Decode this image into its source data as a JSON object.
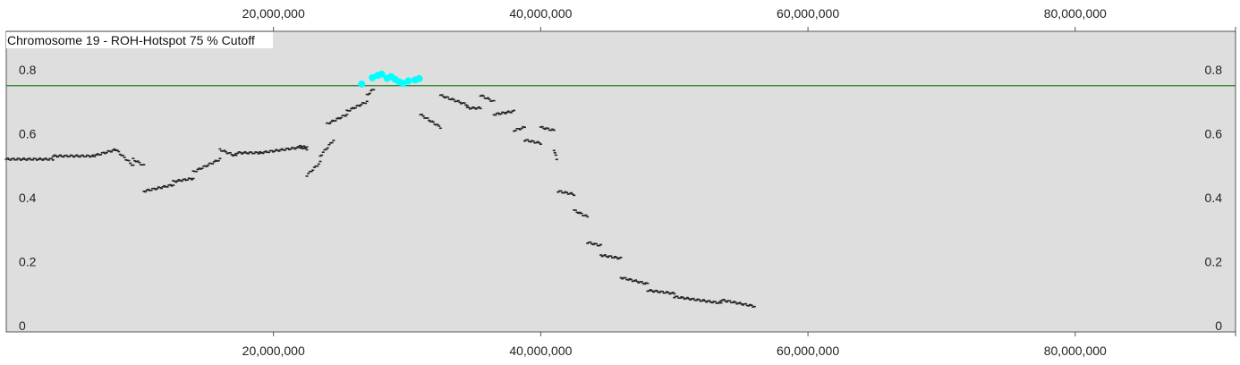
{
  "chart_data": {
    "type": "scatter",
    "title": "Chromosome 19 - ROH-Hotspot 75 % Cutoff",
    "xlim": [
      1,
      92000000
    ],
    "ylim": [
      -0.02,
      0.92
    ],
    "x_ticks": [
      20000000,
      40000000,
      60000000,
      80000000
    ],
    "x_tick_labels": [
      "20,000,000",
      "40,000,000",
      "60,000,000",
      "80,000,000"
    ],
    "y_ticks": [
      0,
      0.2,
      0.4,
      0.6,
      0.8
    ],
    "y_tick_labels": [
      "0",
      "0.2",
      "0.4",
      "0.6",
      "0.8"
    ],
    "cutoff": 0.75,
    "colors": {
      "panel": "#dedede",
      "points": "#222222",
      "hotspot": "#00ffff",
      "cutoff_line": "#1f7a1f"
    },
    "segments": [
      [
        0.0,
        3.5,
        0.52,
        0.52
      ],
      [
        3.5,
        6.5,
        0.53,
        0.53
      ],
      [
        6.5,
        8.2,
        0.53,
        0.55
      ],
      [
        8.2,
        9.5,
        0.55,
        0.5
      ],
      [
        9.5,
        10.3,
        0.52,
        0.5
      ],
      [
        10.3,
        12.5,
        0.42,
        0.44
      ],
      [
        12.5,
        14.0,
        0.45,
        0.46
      ],
      [
        14.0,
        16.0,
        0.48,
        0.52
      ],
      [
        16.0,
        17.2,
        0.55,
        0.53
      ],
      [
        17.2,
        19.0,
        0.54,
        0.54
      ],
      [
        19.0,
        22.5,
        0.54,
        0.56
      ],
      [
        22.0,
        22.5,
        0.56,
        0.55
      ],
      [
        22.5,
        23.5,
        0.47,
        0.51
      ],
      [
        23.5,
        24.5,
        0.53,
        0.58
      ],
      [
        24.0,
        25.5,
        0.63,
        0.66
      ],
      [
        25.5,
        27.0,
        0.67,
        0.7
      ],
      [
        27.0,
        27.5,
        0.72,
        0.74
      ],
      [
        31.0,
        32.5,
        0.66,
        0.62
      ],
      [
        32.5,
        34.5,
        0.72,
        0.69
      ],
      [
        34.5,
        35.5,
        0.68,
        0.68
      ],
      [
        35.5,
        36.5,
        0.72,
        0.7
      ],
      [
        36.5,
        38.0,
        0.66,
        0.67
      ],
      [
        38.0,
        38.8,
        0.61,
        0.62
      ],
      [
        38.8,
        40.0,
        0.58,
        0.57
      ],
      [
        40.0,
        41.0,
        0.62,
        0.61
      ],
      [
        41.0,
        41.2,
        0.55,
        0.52
      ],
      [
        41.3,
        42.5,
        0.42,
        0.41
      ],
      [
        42.5,
        43.5,
        0.36,
        0.34
      ],
      [
        43.5,
        44.5,
        0.26,
        0.25
      ],
      [
        44.5,
        46.0,
        0.22,
        0.21
      ],
      [
        46.0,
        48.0,
        0.15,
        0.13
      ],
      [
        48.0,
        50.0,
        0.11,
        0.1
      ],
      [
        50.0,
        53.5,
        0.09,
        0.07
      ],
      [
        53.5,
        56.0,
        0.08,
        0.06
      ]
    ],
    "hotspot_points": [
      [
        26.6,
        0.755
      ],
      [
        27.4,
        0.775
      ],
      [
        27.8,
        0.782
      ],
      [
        28.1,
        0.786
      ],
      [
        28.5,
        0.773
      ],
      [
        28.8,
        0.778
      ],
      [
        29.1,
        0.77
      ],
      [
        29.4,
        0.762
      ],
      [
        29.7,
        0.757
      ],
      [
        30.1,
        0.765
      ],
      [
        30.6,
        0.768
      ],
      [
        30.9,
        0.772
      ]
    ]
  }
}
